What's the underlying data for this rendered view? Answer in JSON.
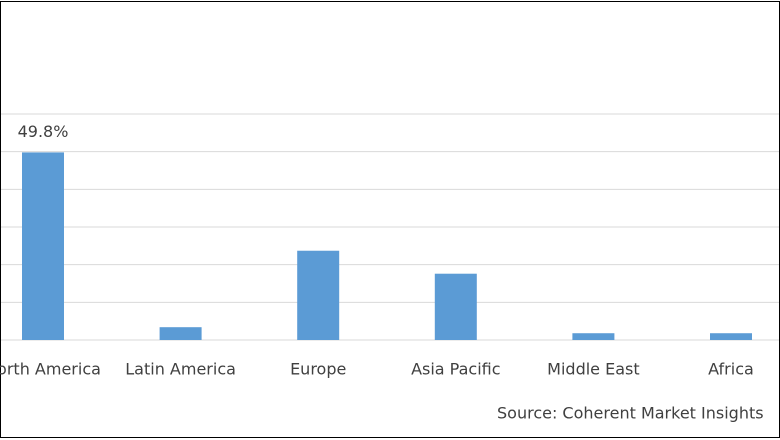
{
  "chart_data": {
    "type": "bar",
    "categories": [
      "North America",
      "Latin America",
      "Europe",
      "Asia Pacific",
      "Middle East",
      "Africa"
    ],
    "values": [
      49.8,
      3.4,
      23.7,
      17.6,
      1.8,
      1.8
    ],
    "value_labels": [
      "49.8%",
      null,
      null,
      null,
      null,
      null
    ],
    "color": "#5b9bd5",
    "ylim": [
      0,
      60
    ],
    "yticks": [
      0,
      10,
      20,
      30,
      40,
      50,
      60
    ],
    "grid": true,
    "source": "Source: Coherent Market Insights"
  }
}
